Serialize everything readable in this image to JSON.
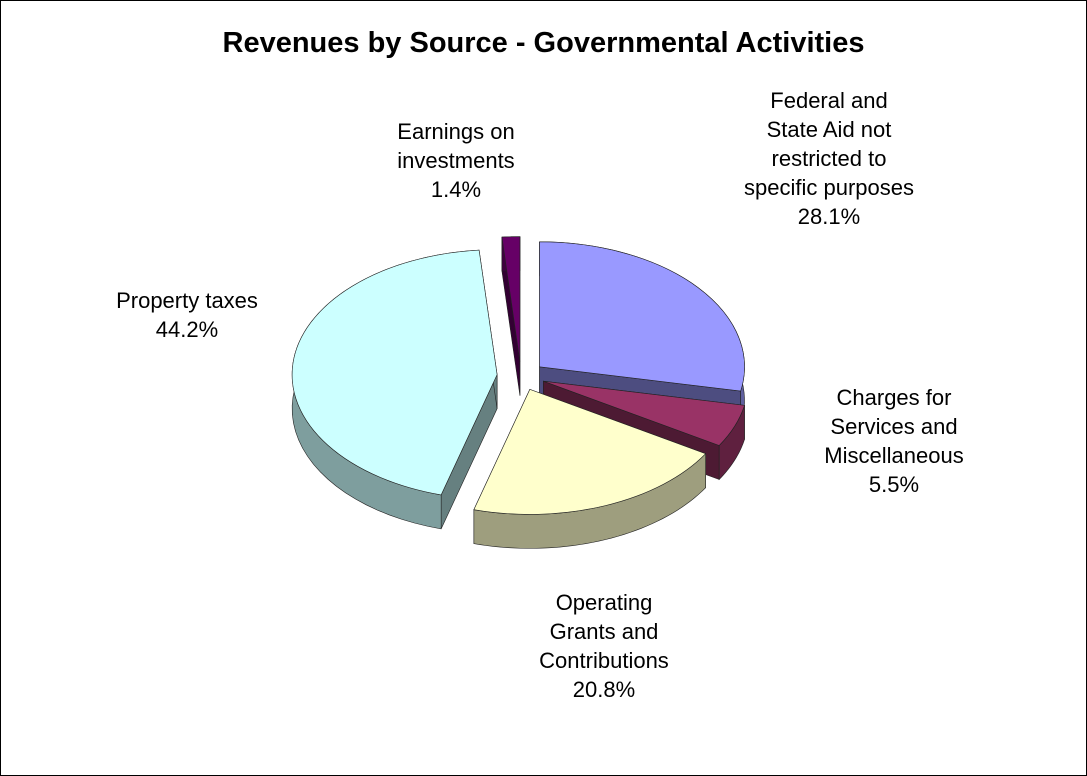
{
  "chart_data": {
    "type": "pie3d",
    "title": "Revenues by Source - Governmental Activities",
    "categories": [
      "Federal and State Aid not restricted to specific purposes",
      "Charges for Services and Miscellaneous",
      "Operating Grants and Contributions",
      "Property taxes",
      "Earnings on investments"
    ],
    "values": [
      28.1,
      5.5,
      20.8,
      44.2,
      1.4
    ],
    "value_labels": [
      "28.1%",
      "5.5%",
      "20.8%",
      "44.2%",
      "1.4%"
    ],
    "colors": [
      "#9999ff",
      "#993366",
      "#ffffcc",
      "#ccffff",
      "#660066"
    ]
  }
}
